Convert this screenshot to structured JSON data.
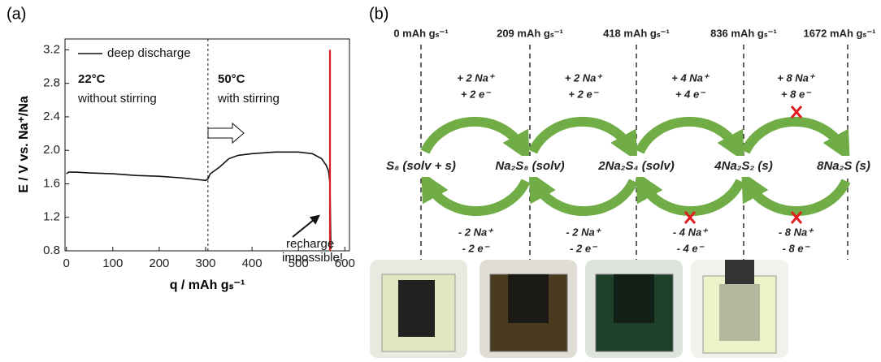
{
  "chart_data": {
    "type": "line",
    "panel": "(a)",
    "xlabel": "q / mAh gₛ⁻¹",
    "ylabel": "E / V vs. Na⁺/Na",
    "xlim": [
      -3,
      610
    ],
    "ylim": [
      0.8,
      3.33
    ],
    "xticks": [
      0,
      100,
      200,
      300,
      400,
      500,
      600
    ],
    "yticks": [
      0.8,
      1.2,
      1.6,
      {
        "value": 2,
        "label": "2.0"
      },
      2.4,
      2.8,
      3.2
    ],
    "legend": "upper left",
    "series": [
      {
        "name": "deep discharge",
        "color": "#111111",
        "x": [
          0,
          5,
          20,
          50,
          100,
          150,
          200,
          250,
          300,
          305,
          310,
          330,
          350,
          370,
          400,
          450,
          500,
          530,
          550,
          560,
          565,
          568,
          570
        ],
        "values": [
          1.72,
          1.74,
          1.74,
          1.73,
          1.72,
          1.7,
          1.69,
          1.67,
          1.64,
          1.66,
          1.72,
          1.8,
          1.9,
          1.94,
          1.96,
          1.98,
          1.98,
          1.96,
          1.9,
          1.82,
          1.75,
          1.6,
          0.82
        ]
      },
      {
        "color": "#d62020",
        "x": [
          568,
          568
        ],
        "values": [
          0.8,
          3.2
        ]
      }
    ],
    "annotations": [
      "22°C",
      "without stirring",
      "50°C",
      "with stirring",
      "recharge",
      "impossible!"
    ]
  },
  "diagram": {
    "panel": "(b)",
    "capacities": [
      "0 mAh gₛ⁻¹",
      "209 mAh gₛ⁻¹",
      "418 mAh gₛ⁻¹",
      "836 mAh gₛ⁻¹",
      "1672 mAh gₛ⁻¹"
    ],
    "species": [
      "S₈ (solv + s)",
      "Na₂S₈ (solv)",
      "2Na₂S₄ (solv)",
      "4Na₂S₂ (s)",
      "8Na₂S (s)"
    ],
    "discharge": [
      [
        "+ 2 Na⁺",
        "+ 2 e⁻"
      ],
      [
        "+ 2 Na⁺",
        "+ 2 e⁻"
      ],
      [
        "+ 4 Na⁺",
        "+ 4 e⁻"
      ],
      [
        "+ 8 Na⁺",
        "+ 8 e⁻"
      ]
    ],
    "charge": [
      [
        "- 2 Na⁺",
        "- 2 e⁻"
      ],
      [
        "- 2 Na⁺",
        "- 2 e⁻"
      ],
      [
        "- 4 Na⁺",
        "- 4 e⁻"
      ],
      [
        "- 8 Na⁺",
        "- 8 e⁻"
      ]
    ]
  }
}
